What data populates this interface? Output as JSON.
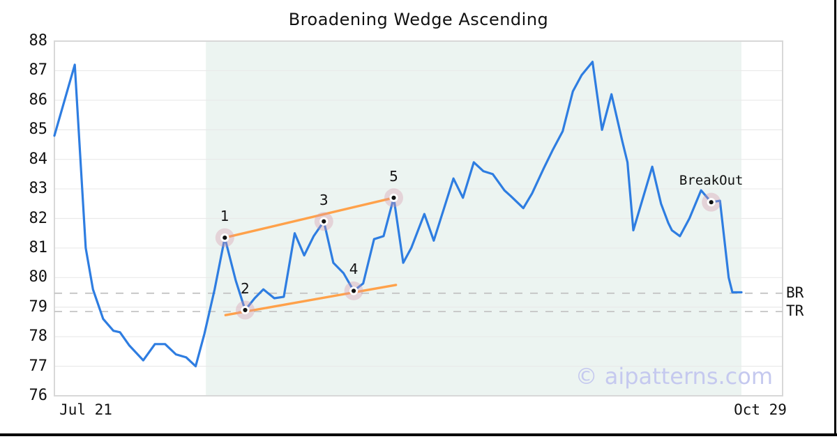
{
  "title": "Broadening Wedge Ascending",
  "watermark_text": "© aipatterns.com",
  "colors": {
    "line": "#2e7de1",
    "trend": "#ffa14a",
    "shade": "#ecf4f1",
    "halo": "rgba(214,150,170,0.35)",
    "dot": "#111111",
    "dot_ring": "#ffffff",
    "grid": "#e9e9e9",
    "border": "#d8d8d8",
    "dashed": "#c4c4c4",
    "watermark": "#c5c9ef",
    "text": "#111111"
  },
  "x_axis": {
    "left_label": "Jul 21",
    "right_label": "Oct 29"
  },
  "y_axis": {
    "ticks": [
      88,
      87,
      86,
      85,
      84,
      83,
      82,
      81,
      80,
      79,
      78,
      77,
      76
    ]
  },
  "right_axis_labels": [
    {
      "text": "BR",
      "value": 79.47
    },
    {
      "text": "TR",
      "value": 78.85
    }
  ],
  "chart_data": {
    "type": "line",
    "title": "Broadening Wedge Ascending",
    "xlabel": "",
    "ylabel": "",
    "ylim": [
      76,
      88
    ],
    "x_range_labels": [
      "Jul 21",
      "Oct 29"
    ],
    "grid": true,
    "legend": "none",
    "series": [
      {
        "name": "price",
        "points": [
          [
            0,
            84.8
          ],
          [
            2.8,
            87.2
          ],
          [
            4.3,
            81.0
          ],
          [
            5.3,
            79.6
          ],
          [
            6.7,
            78.6
          ],
          [
            8.1,
            78.2
          ],
          [
            9.0,
            78.15
          ],
          [
            10.3,
            77.7
          ],
          [
            12.2,
            77.2
          ],
          [
            13.8,
            77.75
          ],
          [
            15.2,
            77.75
          ],
          [
            16.7,
            77.4
          ],
          [
            18.1,
            77.3
          ],
          [
            19.4,
            77.0
          ],
          [
            20.6,
            78.1
          ],
          [
            22.0,
            79.6
          ],
          [
            23.4,
            81.35
          ],
          [
            24.9,
            79.9
          ],
          [
            26.2,
            78.9
          ],
          [
            27.5,
            79.3
          ],
          [
            28.7,
            79.6
          ],
          [
            30.2,
            79.3
          ],
          [
            31.5,
            79.35
          ],
          [
            33.0,
            81.5
          ],
          [
            34.3,
            80.75
          ],
          [
            35.6,
            81.4
          ],
          [
            37.0,
            81.9
          ],
          [
            38.3,
            80.5
          ],
          [
            39.7,
            80.15
          ],
          [
            41.1,
            79.55
          ],
          [
            42.4,
            79.8
          ],
          [
            43.9,
            81.3
          ],
          [
            45.2,
            81.4
          ],
          [
            46.6,
            82.7
          ],
          [
            47.9,
            80.5
          ],
          [
            49.0,
            81.0
          ],
          [
            50.8,
            82.15
          ],
          [
            52.1,
            81.25
          ],
          [
            54.8,
            83.35
          ],
          [
            56.1,
            82.7
          ],
          [
            57.6,
            83.9
          ],
          [
            58.9,
            83.6
          ],
          [
            60.2,
            83.5
          ],
          [
            61.8,
            82.95
          ],
          [
            62.7,
            82.75
          ],
          [
            64.4,
            82.35
          ],
          [
            65.6,
            82.85
          ],
          [
            67.2,
            83.7
          ],
          [
            68.4,
            84.3
          ],
          [
            69.8,
            84.95
          ],
          [
            71.2,
            86.3
          ],
          [
            72.4,
            86.85
          ],
          [
            73.9,
            87.3
          ],
          [
            75.2,
            85.0
          ],
          [
            76.5,
            86.2
          ],
          [
            78.0,
            84.6
          ],
          [
            78.7,
            83.9
          ],
          [
            79.5,
            81.6
          ],
          [
            82.1,
            83.75
          ],
          [
            83.3,
            82.5
          ],
          [
            84.3,
            81.85
          ],
          [
            84.8,
            81.6
          ],
          [
            85.9,
            81.4
          ],
          [
            87.2,
            82.0
          ],
          [
            88.8,
            82.95
          ],
          [
            90.2,
            82.55
          ],
          [
            91.4,
            82.6
          ],
          [
            92.6,
            80.0
          ],
          [
            93.1,
            79.5
          ],
          [
            94.35,
            79.5
          ]
        ]
      }
    ],
    "pattern_points": [
      {
        "label": "1",
        "x": 23.4,
        "value": 81.35
      },
      {
        "label": "2",
        "x": 26.2,
        "value": 78.9
      },
      {
        "label": "3",
        "x": 37.0,
        "value": 81.9
      },
      {
        "label": "4",
        "x": 41.1,
        "value": 79.55
      },
      {
        "label": "5",
        "x": 46.6,
        "value": 82.7
      }
    ],
    "breakout_point": {
      "label": "BreakOut",
      "x": 90.2,
      "value": 82.55
    },
    "trendlines": [
      {
        "name": "upper",
        "from": [
          23.4,
          81.35
        ],
        "to": [
          46.6,
          82.7
        ]
      },
      {
        "name": "lower",
        "from": [
          23.5,
          78.73
        ],
        "to": [
          46.9,
          79.75
        ]
      }
    ],
    "levels": [
      {
        "label": "BR",
        "value": 79.47
      },
      {
        "label": "TR",
        "value": 78.85
      }
    ],
    "shaded_region": {
      "x_from": 20.8,
      "x_to": 94.35
    }
  }
}
